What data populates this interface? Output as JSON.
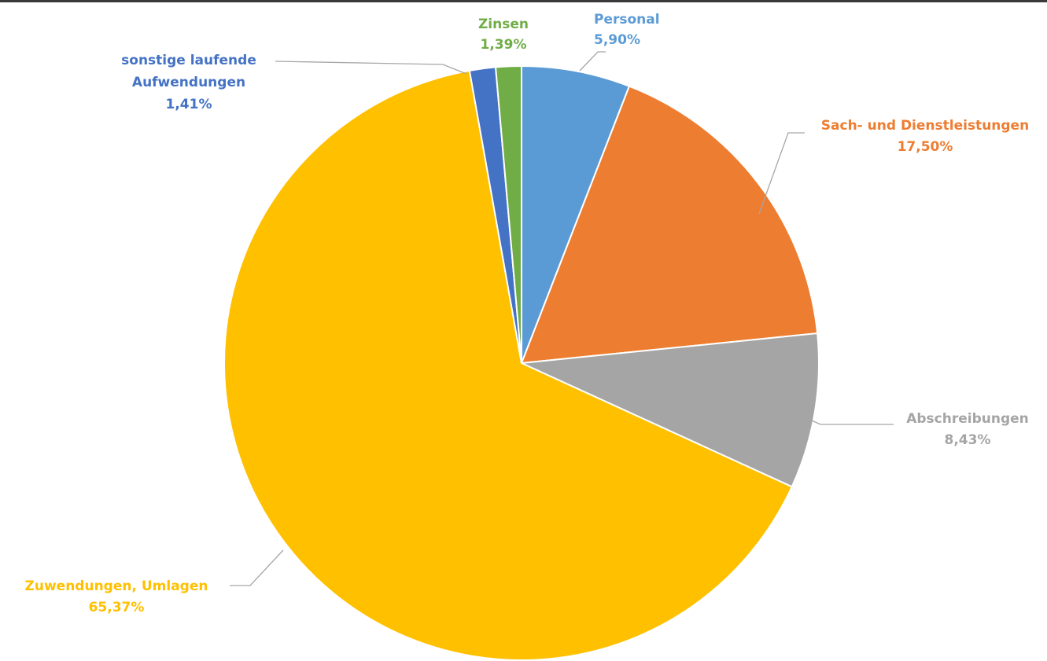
{
  "chart_data": {
    "type": "pie",
    "start_angle_deg": 0,
    "direction": "clockwise",
    "slices": [
      {
        "name": "Personal",
        "value": 5.9,
        "value_label": "5,90%",
        "color": "#5b9bd5"
      },
      {
        "name": "Sach- und Dienstleistungen",
        "value": 17.5,
        "value_label": "17,50%",
        "color": "#ed7d31"
      },
      {
        "name": "Abschreibungen",
        "value": 8.43,
        "value_label": "8,43%",
        "color": "#a5a5a5"
      },
      {
        "name": "Zuwendungen, Umlagen",
        "value": 65.37,
        "value_label": "65,37%",
        "color": "#ffc000"
      },
      {
        "name": "sonstige laufende Aufwendungen",
        "name_lines": [
          "sonstige laufende",
          "Aufwendungen"
        ],
        "value": 1.41,
        "value_label": "1,41%",
        "color": "#4472c4"
      },
      {
        "name": "Zinsen",
        "value": 1.39,
        "value_label": "1,39%",
        "color": "#70ad47"
      }
    ],
    "label_colors": {
      "Personal": "#5b9bd5",
      "Sach- und Dienstleistungen": "#ed7d31",
      "Abschreibungen": "#a5a5a5",
      "Zuwendungen, Umlagen": "#ffc000",
      "sonstige laufende Aufwendungen": "#4472c4",
      "Zinsen": "#70ad47"
    }
  }
}
